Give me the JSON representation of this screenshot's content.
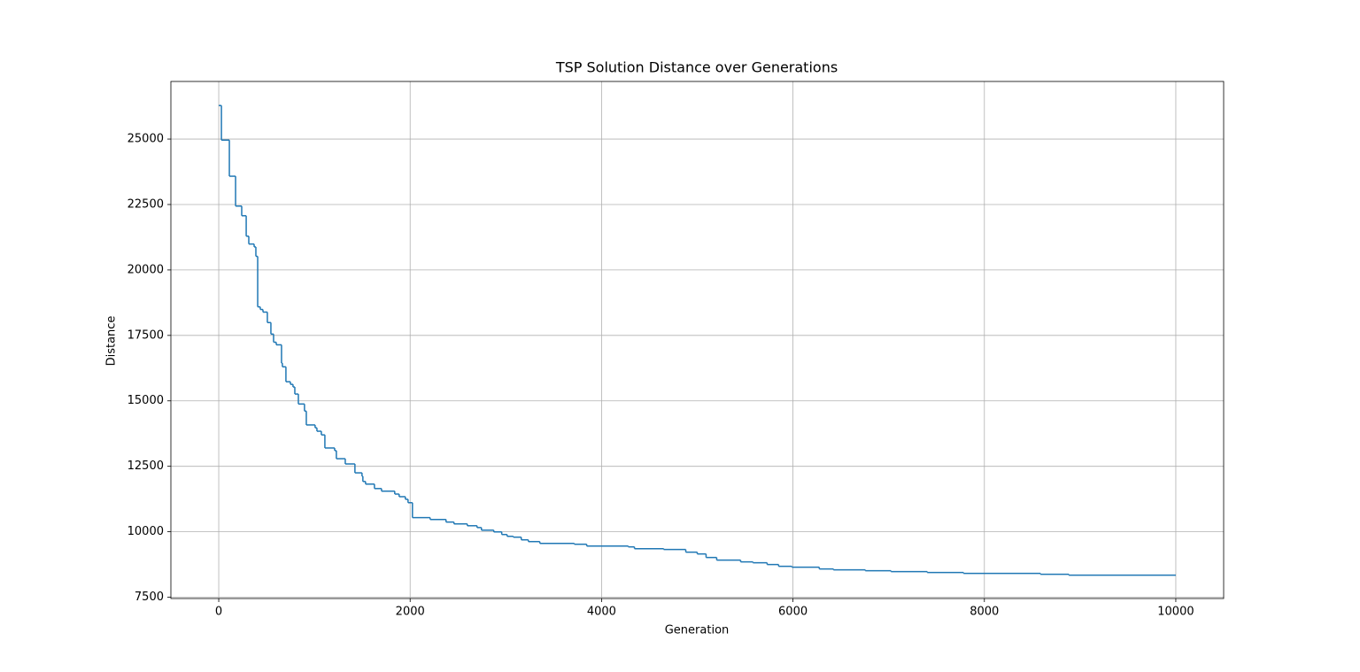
{
  "chart_data": {
    "type": "line",
    "drawstyle": "steps-post",
    "title": "TSP Solution Distance over Generations",
    "x_label": "Generation",
    "y_label": "Distance",
    "x": [
      0,
      28,
      111,
      176,
      240,
      287,
      314,
      370,
      388,
      407,
      434,
      462,
      508,
      545,
      573,
      601,
      656,
      665,
      702,
      749,
      776,
      795,
      832,
      896,
      915,
      1007,
      1026,
      1072,
      1109,
      1211,
      1229,
      1322,
      1423,
      1497,
      1506,
      1534,
      1627,
      1701,
      1839,
      1885,
      1950,
      1978,
      2024,
      2209,
      2375,
      2458,
      2597,
      2699,
      2745,
      2874,
      2957,
      3013,
      3078,
      3161,
      3235,
      3355,
      3715,
      3845,
      4279,
      4344,
      4649,
      4880,
      5000,
      5092,
      5203,
      5453,
      5582,
      5730,
      5850,
      5989,
      6275,
      6423,
      6756,
      7024,
      7403,
      7782,
      8586,
      8882,
      10000
    ],
    "series": [
      {
        "name": "Distance",
        "color": "#1f77b4",
        "values": [
          26280,
          24960,
          23580,
          22440,
          22070,
          21290,
          20990,
          20880,
          20520,
          18590,
          18490,
          18390,
          17990,
          17550,
          17240,
          17140,
          16440,
          16300,
          15730,
          15630,
          15530,
          15260,
          14880,
          14610,
          14080,
          13970,
          13840,
          13700,
          13200,
          13100,
          12790,
          12590,
          12250,
          12120,
          11920,
          11820,
          11650,
          11550,
          11440,
          11340,
          11240,
          11110,
          10540,
          10470,
          10370,
          10300,
          10230,
          10160,
          10060,
          9995,
          9894,
          9826,
          9793,
          9691,
          9624,
          9557,
          9523,
          9455,
          9422,
          9354,
          9321,
          9220,
          9152,
          9017,
          8916,
          8849,
          8815,
          8748,
          8680,
          8646,
          8579,
          8545,
          8511,
          8478,
          8444,
          8410,
          8376,
          8343,
          8343
        ]
      }
    ],
    "xlim": [
      -500,
      10500
    ],
    "xticks": [
      0,
      2000,
      4000,
      6000,
      8000,
      10000
    ],
    "ylim": [
      7450,
      27200
    ],
    "yticks": [
      7500,
      10000,
      12500,
      15000,
      17500,
      20000,
      22500,
      25000
    ],
    "grid": true
  }
}
